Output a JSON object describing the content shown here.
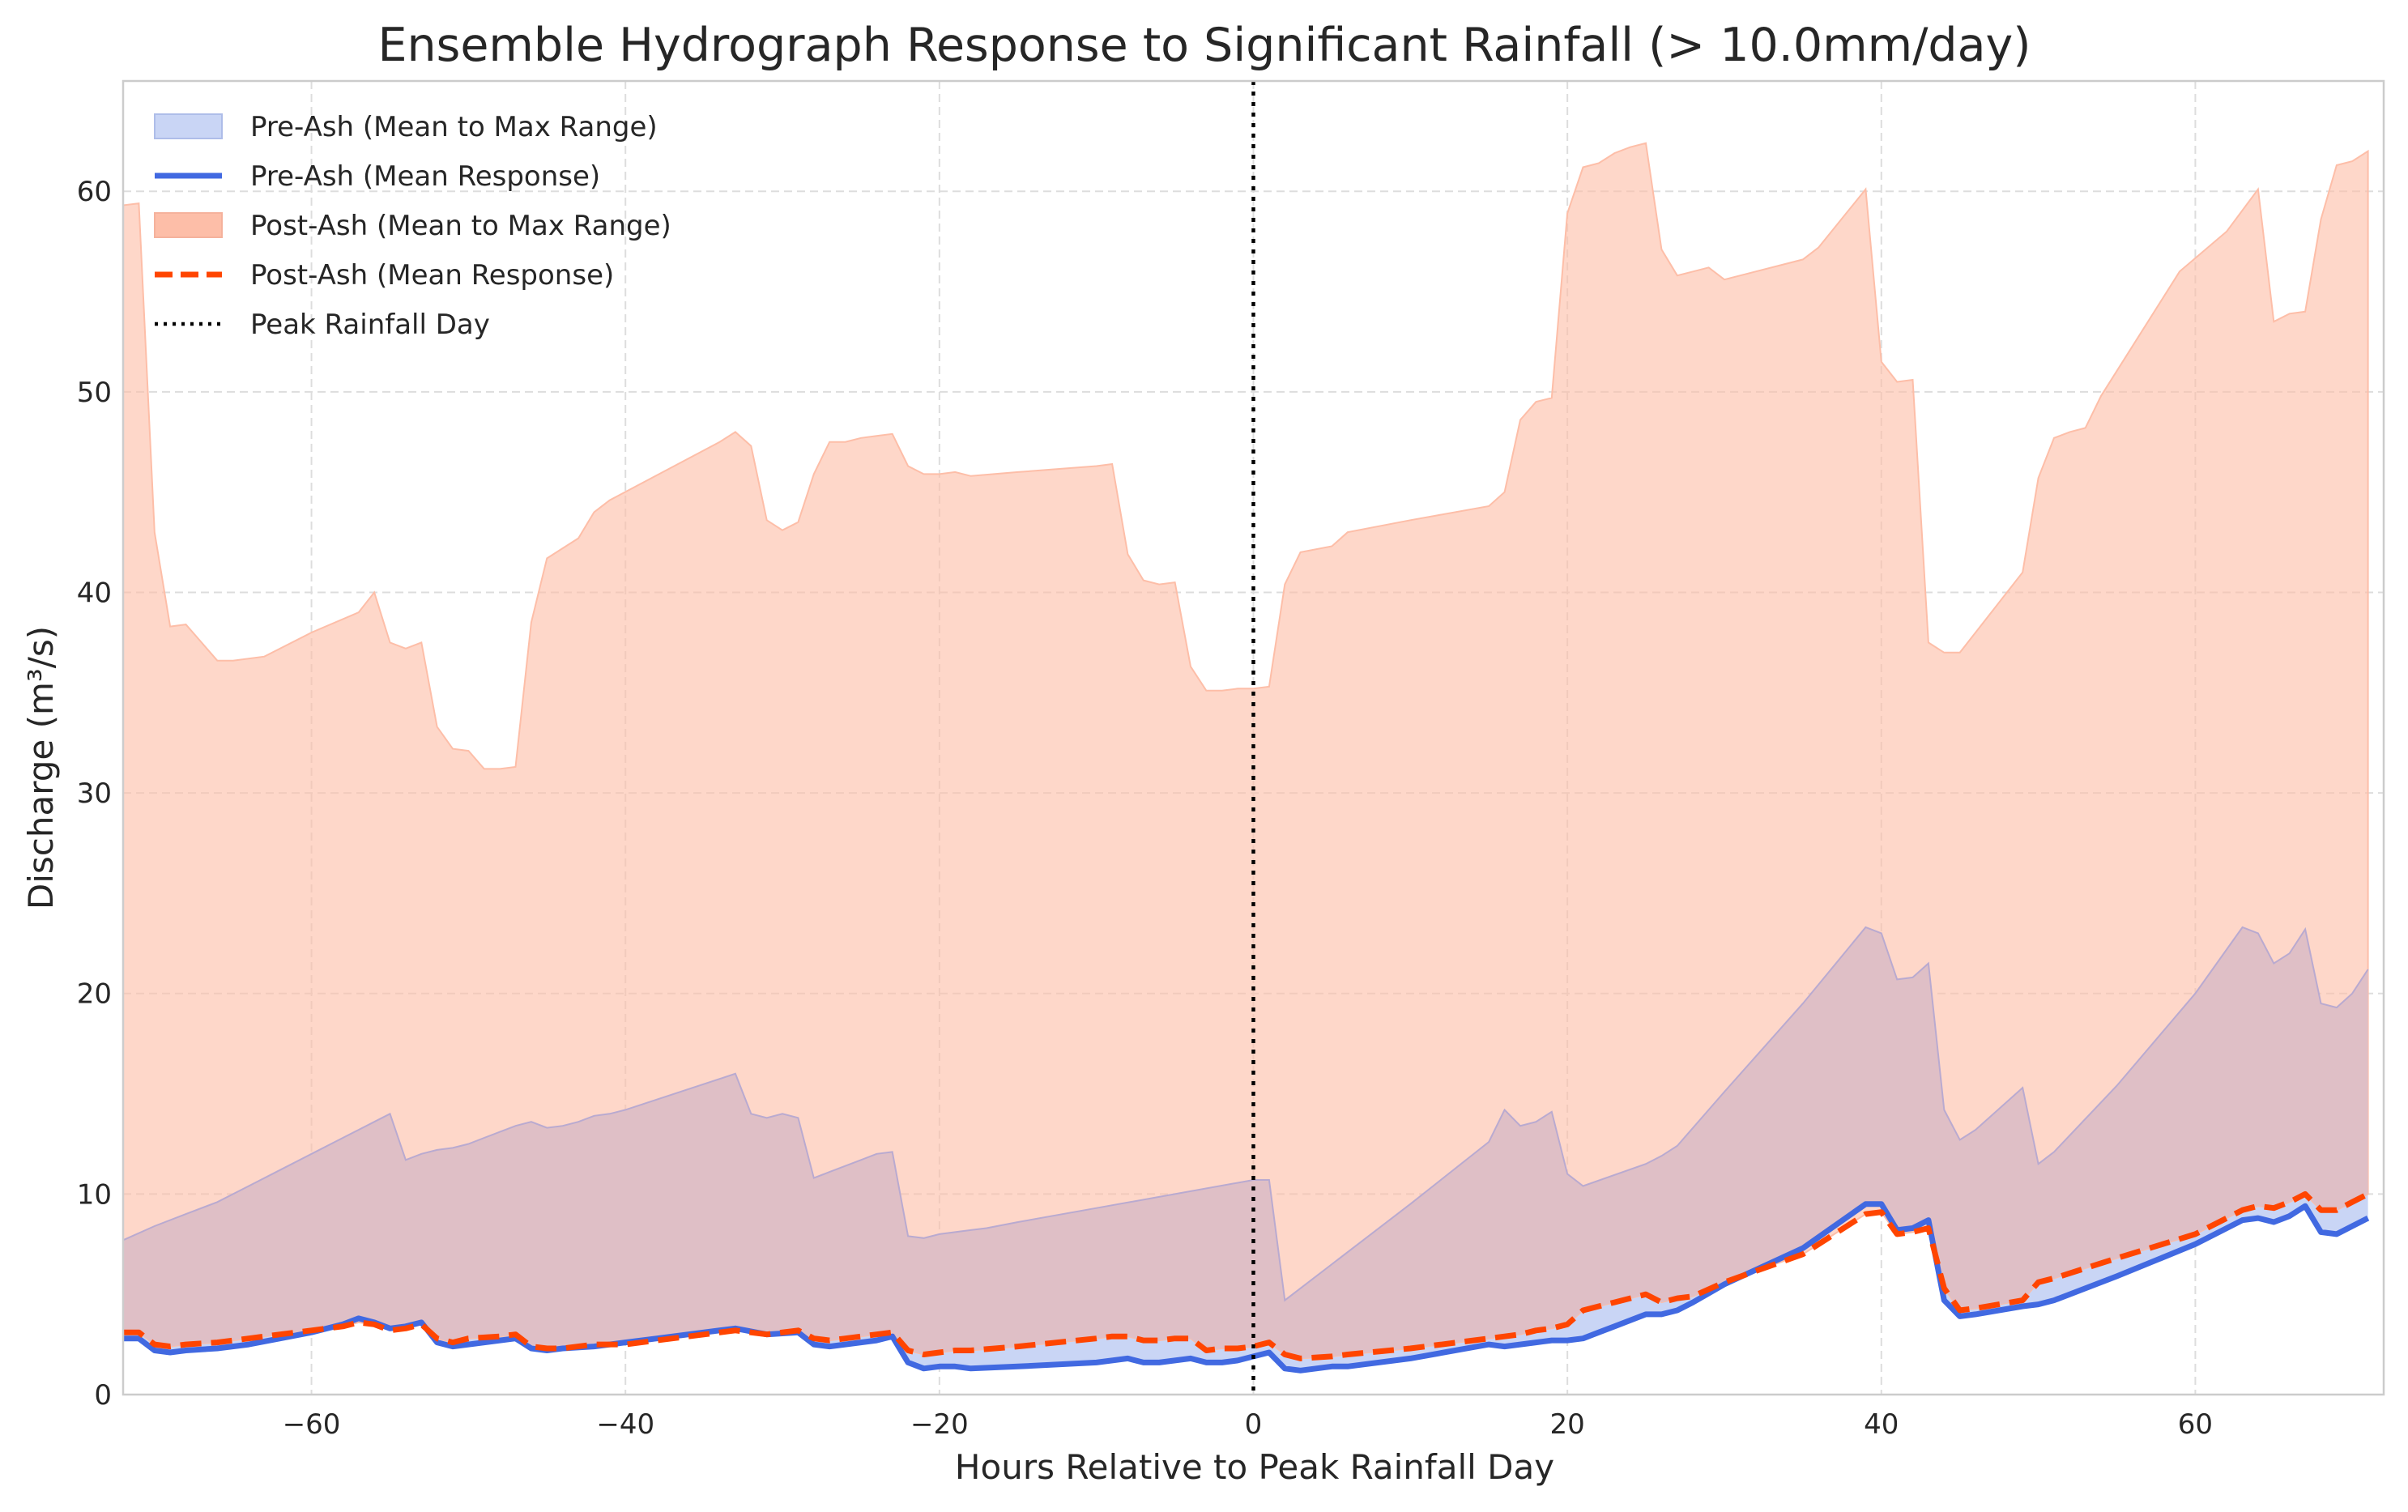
{
  "chart_data": {
    "type": "area",
    "title": "Ensemble Hydrograph Response to Significant Rainfall (> 10.0mm/day)",
    "xlabel": "Hours Relative to Peak Rainfall Day",
    "ylabel": "Discharge (m³/s)",
    "xlim": [
      -72,
      72
    ],
    "ylim": [
      0,
      65.5
    ],
    "xticks": [
      -60,
      -40,
      -20,
      0,
      20,
      40,
      60
    ],
    "yticks": [
      0,
      10,
      20,
      30,
      40,
      50,
      60
    ],
    "xtick_labels": [
      "−60",
      "−40",
      "−20",
      "0",
      "20",
      "40",
      "60"
    ],
    "ytick_labels": [
      "0",
      "10",
      "20",
      "30",
      "40",
      "50",
      "60"
    ],
    "grid": true,
    "legend_position": "top-left",
    "vline": {
      "x": 0,
      "label": "Peak Rainfall Day",
      "color": "#000000"
    },
    "colors": {
      "pre_fill": "#c9d5f5",
      "pre_line": "#4169e1",
      "post_fill": "#fdbea8",
      "post_line": "#ff4500",
      "overlap_fill": "#dfbfc6"
    },
    "series": [
      {
        "name": "Pre-Ash (Mean to Max Range)",
        "kind": "band",
        "x": [
          -72,
          -70,
          -68,
          -66,
          -64,
          -62,
          -60,
          -58,
          -57,
          -56,
          -55,
          -54,
          -53,
          -52,
          -51,
          -50,
          -49,
          -48,
          -47,
          -46,
          -45,
          -44,
          -43,
          -42,
          -41,
          -40,
          -33,
          -32,
          -31,
          -30,
          -29,
          -28,
          -27,
          -26,
          -25,
          -24,
          -23,
          -22,
          -21,
          -20,
          -19,
          -18,
          -17,
          -15,
          -10,
          -5,
          0,
          1,
          2,
          5,
          10,
          15,
          16,
          17,
          18,
          19,
          20,
          21,
          25,
          26,
          27,
          28,
          29,
          30,
          35,
          39,
          40,
          41,
          42,
          43,
          44,
          45,
          46,
          49,
          50,
          51,
          55,
          60,
          63,
          64,
          65,
          66,
          67,
          68,
          69,
          70,
          71
        ],
        "values": [
          7.7,
          8.4,
          9.0,
          9.6,
          10.4,
          11.2,
          12.0,
          12.8,
          13.2,
          13.6,
          14.0,
          11.7,
          12.0,
          12.2,
          12.3,
          12.5,
          12.8,
          13.1,
          13.4,
          13.6,
          13.3,
          13.4,
          13.6,
          13.9,
          14.0,
          14.2,
          16.0,
          14.0,
          13.8,
          14.0,
          13.8,
          10.8,
          11.1,
          11.4,
          11.7,
          12.0,
          12.1,
          7.9,
          7.8,
          8.0,
          8.1,
          8.2,
          8.3,
          8.6,
          9.3,
          10.0,
          10.7,
          10.7,
          4.7,
          6.5,
          9.5,
          12.6,
          14.2,
          13.4,
          13.6,
          14.1,
          11.0,
          10.4,
          11.5,
          11.9,
          12.4,
          13.3,
          14.2,
          15.1,
          19.5,
          23.3,
          23.0,
          20.7,
          20.8,
          21.5,
          14.2,
          12.7,
          13.2,
          15.3,
          11.5,
          12.1,
          15.4,
          20.0,
          23.3,
          23.0,
          21.5,
          22.0,
          23.2,
          19.5,
          19.3,
          20.0,
          21.2
        ]
      },
      {
        "name": "Pre-Ash (Mean Response)",
        "kind": "line",
        "x": [
          -72,
          -71,
          -70,
          -69,
          -68,
          -66,
          -64,
          -62,
          -60,
          -58,
          -57,
          -56,
          -55,
          -54,
          -53,
          -52,
          -51,
          -50,
          -48,
          -47,
          -46,
          -45,
          -44,
          -42,
          -40,
          -38,
          -36,
          -33,
          -31,
          -29,
          -28,
          -27,
          -26,
          -24,
          -23,
          -22,
          -21,
          -20,
          -19,
          -18,
          -15,
          -10,
          -9,
          -8,
          -7,
          -6,
          -5,
          -4,
          -3,
          -2,
          -1,
          0,
          1,
          2,
          3,
          5,
          6,
          10,
          15,
          16,
          17,
          18,
          19,
          20,
          21,
          22,
          23,
          25,
          26,
          27,
          28,
          30,
          35,
          39,
          40,
          41,
          42,
          43,
          44,
          45,
          46,
          49,
          50,
          51,
          55,
          60,
          63,
          64,
          65,
          66,
          67,
          68,
          69,
          70,
          71
        ],
        "values": [
          2.8,
          2.8,
          2.2,
          2.1,
          2.2,
          2.3,
          2.5,
          2.8,
          3.1,
          3.5,
          3.8,
          3.6,
          3.3,
          3.4,
          3.6,
          2.6,
          2.4,
          2.5,
          2.7,
          2.8,
          2.3,
          2.2,
          2.3,
          2.4,
          2.6,
          2.8,
          3.0,
          3.3,
          3.0,
          3.1,
          2.5,
          2.4,
          2.5,
          2.7,
          2.9,
          1.6,
          1.3,
          1.4,
          1.4,
          1.3,
          1.4,
          1.6,
          1.7,
          1.8,
          1.6,
          1.6,
          1.7,
          1.8,
          1.6,
          1.6,
          1.7,
          1.9,
          2.1,
          1.3,
          1.2,
          1.4,
          1.4,
          1.8,
          2.5,
          2.4,
          2.5,
          2.6,
          2.7,
          2.7,
          2.8,
          3.1,
          3.4,
          4.0,
          4.0,
          4.2,
          4.6,
          5.5,
          7.3,
          9.5,
          9.5,
          8.2,
          8.3,
          8.7,
          4.7,
          3.9,
          4.0,
          4.4,
          4.5,
          4.7,
          5.9,
          7.5,
          8.7,
          8.8,
          8.6,
          8.9,
          9.4,
          8.1,
          8.0,
          8.4,
          8.8
        ]
      },
      {
        "name": "Post-Ash (Mean to Max Range)",
        "kind": "band",
        "x": [
          -72,
          -71,
          -70,
          -69,
          -68,
          -66,
          -65,
          -63,
          -60,
          -57,
          -56,
          -55,
          -54,
          -53,
          -52,
          -51,
          -50,
          -49,
          -48,
          -47,
          -46,
          -45,
          -44,
          -43,
          -42,
          -41,
          -34,
          -33,
          -32,
          -31,
          -30,
          -29,
          -28,
          -27,
          -26,
          -25,
          -24,
          -23,
          -22,
          -21,
          -20,
          -19,
          -18,
          -15,
          -10,
          -9,
          -8,
          -7,
          -6,
          -5,
          -4,
          -3,
          -2,
          -1,
          0,
          1,
          2,
          3,
          5,
          6,
          10,
          15,
          16,
          17,
          18,
          19,
          20,
          21,
          22,
          23,
          24,
          25,
          26,
          27,
          28,
          29,
          30,
          35,
          36,
          39,
          40,
          41,
          42,
          43,
          44,
          45,
          49,
          50,
          51,
          52,
          53,
          54,
          59,
          62,
          64,
          65,
          66,
          67,
          68,
          69,
          70,
          71
        ],
        "values": [
          59.3,
          59.4,
          43.0,
          38.3,
          38.4,
          36.6,
          36.6,
          36.8,
          38.0,
          39.0,
          40.0,
          37.5,
          37.2,
          37.5,
          33.3,
          32.2,
          32.1,
          31.2,
          31.2,
          31.3,
          38.5,
          41.7,
          42.2,
          42.7,
          44.0,
          44.6,
          47.5,
          48.0,
          47.3,
          43.6,
          43.1,
          43.5,
          45.9,
          47.5,
          47.5,
          47.7,
          47.8,
          47.9,
          46.3,
          45.9,
          45.9,
          46.0,
          45.8,
          46.0,
          46.3,
          46.4,
          41.9,
          40.6,
          40.4,
          40.5,
          36.3,
          35.1,
          35.1,
          35.2,
          35.2,
          35.3,
          40.4,
          42.0,
          42.3,
          43.0,
          43.6,
          44.3,
          45.0,
          48.6,
          49.5,
          49.7,
          58.9,
          61.2,
          61.4,
          61.9,
          62.2,
          62.4,
          57.1,
          55.8,
          56.0,
          56.2,
          55.6,
          56.6,
          57.2,
          60.1,
          51.5,
          50.5,
          50.6,
          37.5,
          37.0,
          37.0,
          41.0,
          45.7,
          47.7,
          48.0,
          48.2,
          49.8,
          56.0,
          58.0,
          60.1,
          53.5,
          53.9,
          54.0,
          58.6,
          61.3,
          61.5,
          62.0
        ]
      },
      {
        "name": "Post-Ash (Mean Response)",
        "kind": "line",
        "x": [
          -72,
          -71,
          -70,
          -69,
          -68,
          -66,
          -64,
          -62,
          -60,
          -58,
          -57,
          -56,
          -55,
          -54,
          -53,
          -52,
          -51,
          -50,
          -48,
          -47,
          -46,
          -45,
          -44,
          -42,
          -40,
          -38,
          -36,
          -33,
          -31,
          -29,
          -28,
          -27,
          -26,
          -24,
          -23,
          -22,
          -21,
          -20,
          -19,
          -18,
          -15,
          -10,
          -9,
          -8,
          -7,
          -6,
          -5,
          -4,
          -3,
          -2,
          -1,
          0,
          1,
          2,
          3,
          5,
          6,
          10,
          15,
          16,
          17,
          18,
          19,
          20,
          21,
          22,
          23,
          25,
          26,
          27,
          28,
          30,
          35,
          39,
          40,
          41,
          42,
          43,
          44,
          45,
          46,
          49,
          50,
          51,
          55,
          60,
          63,
          64,
          65,
          66,
          67,
          68,
          69,
          70,
          71
        ],
        "values": [
          3.1,
          3.1,
          2.5,
          2.4,
          2.5,
          2.6,
          2.8,
          3.0,
          3.2,
          3.4,
          3.6,
          3.5,
          3.2,
          3.3,
          3.5,
          2.8,
          2.6,
          2.8,
          2.9,
          3.0,
          2.4,
          2.3,
          2.3,
          2.5,
          2.5,
          2.7,
          2.9,
          3.2,
          3.0,
          3.2,
          2.8,
          2.7,
          2.8,
          3.0,
          3.1,
          2.2,
          2.0,
          2.1,
          2.2,
          2.2,
          2.4,
          2.8,
          2.9,
          2.9,
          2.7,
          2.7,
          2.8,
          2.8,
          2.2,
          2.3,
          2.3,
          2.4,
          2.6,
          2.0,
          1.8,
          1.9,
          2.0,
          2.3,
          2.8,
          2.9,
          3.0,
          3.2,
          3.3,
          3.5,
          4.2,
          4.4,
          4.6,
          5.0,
          4.6,
          4.8,
          4.9,
          5.6,
          7.0,
          9.0,
          9.1,
          8.0,
          8.1,
          8.3,
          5.3,
          4.2,
          4.3,
          4.7,
          5.6,
          5.8,
          6.8,
          8.0,
          9.2,
          9.4,
          9.3,
          9.6,
          10.0,
          9.2,
          9.2,
          9.6,
          10.0
        ]
      }
    ]
  }
}
